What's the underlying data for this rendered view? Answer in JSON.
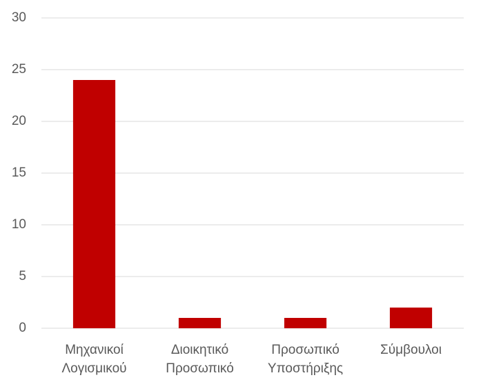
{
  "chart_data": {
    "type": "bar",
    "categories": [
      "Μηχανικοί Λογισμικού",
      "Διοικητικό Προσωπικό",
      "Προσωπικό Υποστήριξης",
      "Σύμβουλοι"
    ],
    "values": [
      24,
      1,
      1,
      2
    ],
    "color": "#c00000",
    "ylim": [
      0,
      30
    ],
    "yticks": [
      0,
      5,
      10,
      15,
      20,
      25,
      30
    ],
    "grid": true
  }
}
